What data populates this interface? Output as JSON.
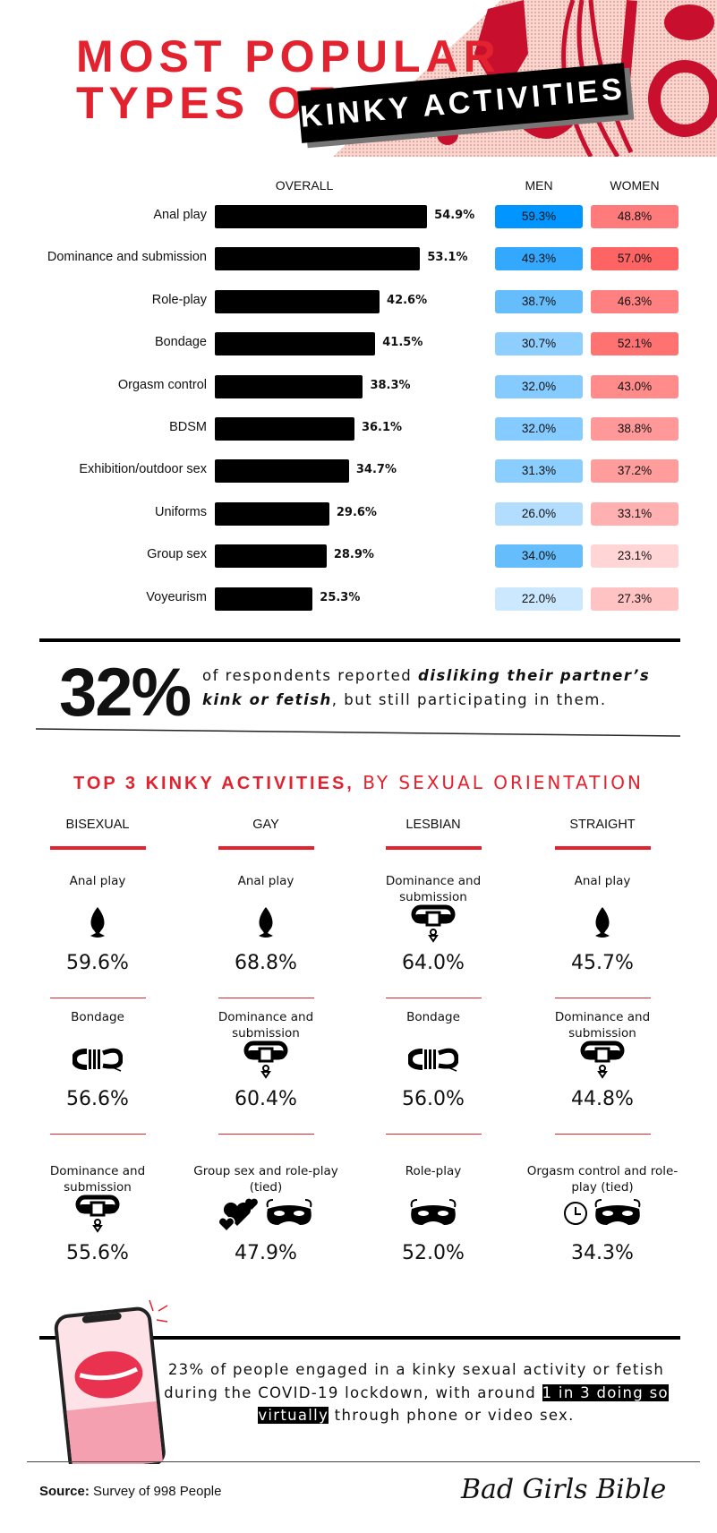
{
  "title": {
    "line1": "MOST POPULAR",
    "line2": "TYPES OF",
    "banner": "KINKY ACTIVITIES",
    "title_color": "#e3222f"
  },
  "chart_data": {
    "type": "bar",
    "columns": {
      "overall": "OVERALL",
      "men": "MEN",
      "women": "WOMEN"
    },
    "categories": [
      "Anal play",
      "Dominance and submission",
      "Role-play",
      "Bondage",
      "Orgasm control",
      "BDSM",
      "Exhibition/outdoor sex",
      "Uniforms",
      "Group sex",
      "Voyeurism"
    ],
    "series": [
      {
        "name": "OVERALL",
        "values": [
          54.9,
          53.1,
          42.6,
          41.5,
          38.3,
          36.1,
          34.7,
          29.6,
          28.9,
          25.3
        ],
        "labels": [
          "54.9%",
          "53.1%",
          "42.6%",
          "41.5%",
          "38.3%",
          "36.1%",
          "34.7%",
          "29.6%",
          "28.9%",
          "25.3%"
        ]
      },
      {
        "name": "MEN",
        "values": [
          59.3,
          49.3,
          38.7,
          30.7,
          32.0,
          32.0,
          31.3,
          26.0,
          34.0,
          22.0
        ],
        "labels": [
          "59.3%",
          "49.3%",
          "38.7%",
          "30.7%",
          "32.0%",
          "32.0%",
          "31.3%",
          "26.0%",
          "34.0%",
          "22.0%"
        ],
        "colors": [
          "#0095ff",
          "#33a8ff",
          "#66bdfc",
          "#8fcfff",
          "#85cbff",
          "#85cbff",
          "#8acdff",
          "#b2ddff",
          "#66bdfc",
          "#cce8ff"
        ]
      },
      {
        "name": "WOMEN",
        "values": [
          48.8,
          57.0,
          46.3,
          52.1,
          43.0,
          38.8,
          37.2,
          33.1,
          23.1,
          27.3
        ],
        "labels": [
          "48.8%",
          "57.0%",
          "46.3%",
          "52.1%",
          "43.0%",
          "38.8%",
          "37.2%",
          "33.1%",
          "23.1%",
          "27.3%"
        ],
        "colors": [
          "#ff7b7b",
          "#ff6464",
          "#ff8080",
          "#ff7272",
          "#ff8b8b",
          "#ff9999",
          "#ff9c9c",
          "#ffb0b0",
          "#ffd5d5",
          "#ffc3c3"
        ]
      }
    ],
    "xlim": [
      0,
      60
    ]
  },
  "callout": {
    "big": "32%",
    "pre": "of respondents reported ",
    "bold": "disliking their partner’s kink or fetish",
    "post": ", but still participating in them."
  },
  "orientation": {
    "heading_bold": "TOP 3 KINKY ACTIVITIES,",
    "heading_rest": " BY SEXUAL ORIENTATION",
    "columns": [
      {
        "name": "BISEXUAL",
        "items": [
          {
            "label": "Anal play",
            "icons": [
              "butt-plug"
            ],
            "value": "59.6%"
          },
          {
            "label": "Bondage",
            "icons": [
              "rope"
            ],
            "value": "56.6%"
          },
          {
            "label": "Dominance and submission",
            "icons": [
              "collar"
            ],
            "value": "55.6%"
          }
        ]
      },
      {
        "name": "GAY",
        "items": [
          {
            "label": "Anal play",
            "icons": [
              "butt-plug"
            ],
            "value": "68.8%"
          },
          {
            "label": "Dominance and submission",
            "icons": [
              "collar"
            ],
            "value": "60.4%"
          },
          {
            "label": "Group sex and role-play (tied)",
            "icons": [
              "hearts",
              "mask"
            ],
            "value": "47.9%"
          }
        ]
      },
      {
        "name": "LESBIAN",
        "items": [
          {
            "label": "Dominance and submission",
            "icons": [
              "collar"
            ],
            "value": "64.0%"
          },
          {
            "label": "Bondage",
            "icons": [
              "rope"
            ],
            "value": "56.0%"
          },
          {
            "label": "Role-play",
            "icons": [
              "mask"
            ],
            "value": "52.0%"
          }
        ]
      },
      {
        "name": "STRAIGHT",
        "items": [
          {
            "label": "Anal play",
            "icons": [
              "butt-plug"
            ],
            "value": "45.7%"
          },
          {
            "label": "Dominance and submission",
            "icons": [
              "collar"
            ],
            "value": "44.8%"
          },
          {
            "label": "Orgasm control and role-play (tied)",
            "icons": [
              "clock",
              "mask"
            ],
            "value": "34.3%"
          }
        ]
      }
    ]
  },
  "covid": {
    "pre": "23% of people engaged in a kinky sexual activity or fetish during the COVID-19 lockdown, with around ",
    "highlight": "1 in 3 doing so virtually",
    "post": " through phone or video sex."
  },
  "footer": {
    "source_label": "Source:",
    "source_text": " Survey of 998 People",
    "logo": "Bad Girls Bible"
  }
}
